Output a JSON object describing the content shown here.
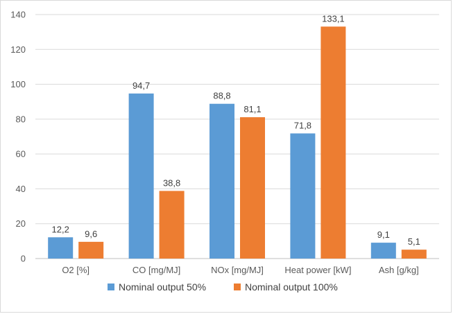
{
  "chart_data": {
    "type": "bar",
    "categories": [
      "O2 [%]",
      "CO [mg/MJ]",
      "NOx [mg/MJ]",
      "Heat power [kW]",
      "Ash [g/kg]"
    ],
    "series": [
      {
        "name": "Nominal output 50%",
        "values": [
          12.2,
          94.7,
          88.8,
          71.8,
          9.1
        ],
        "labels": [
          "12,2",
          "94,7",
          "88,8",
          "71,8",
          "9,1"
        ],
        "color": "#5b9bd5"
      },
      {
        "name": "Nominal output 100%",
        "values": [
          9.6,
          38.8,
          81.1,
          133.1,
          5.1
        ],
        "labels": [
          "9,6",
          "38,8",
          "81,1",
          "133,1",
          "5,1"
        ],
        "color": "#ed7d31"
      }
    ],
    "ylim": [
      0,
      140
    ],
    "yticks": [
      0,
      20,
      40,
      60,
      80,
      100,
      120,
      140
    ],
    "grid": true,
    "legend": "bottom"
  }
}
